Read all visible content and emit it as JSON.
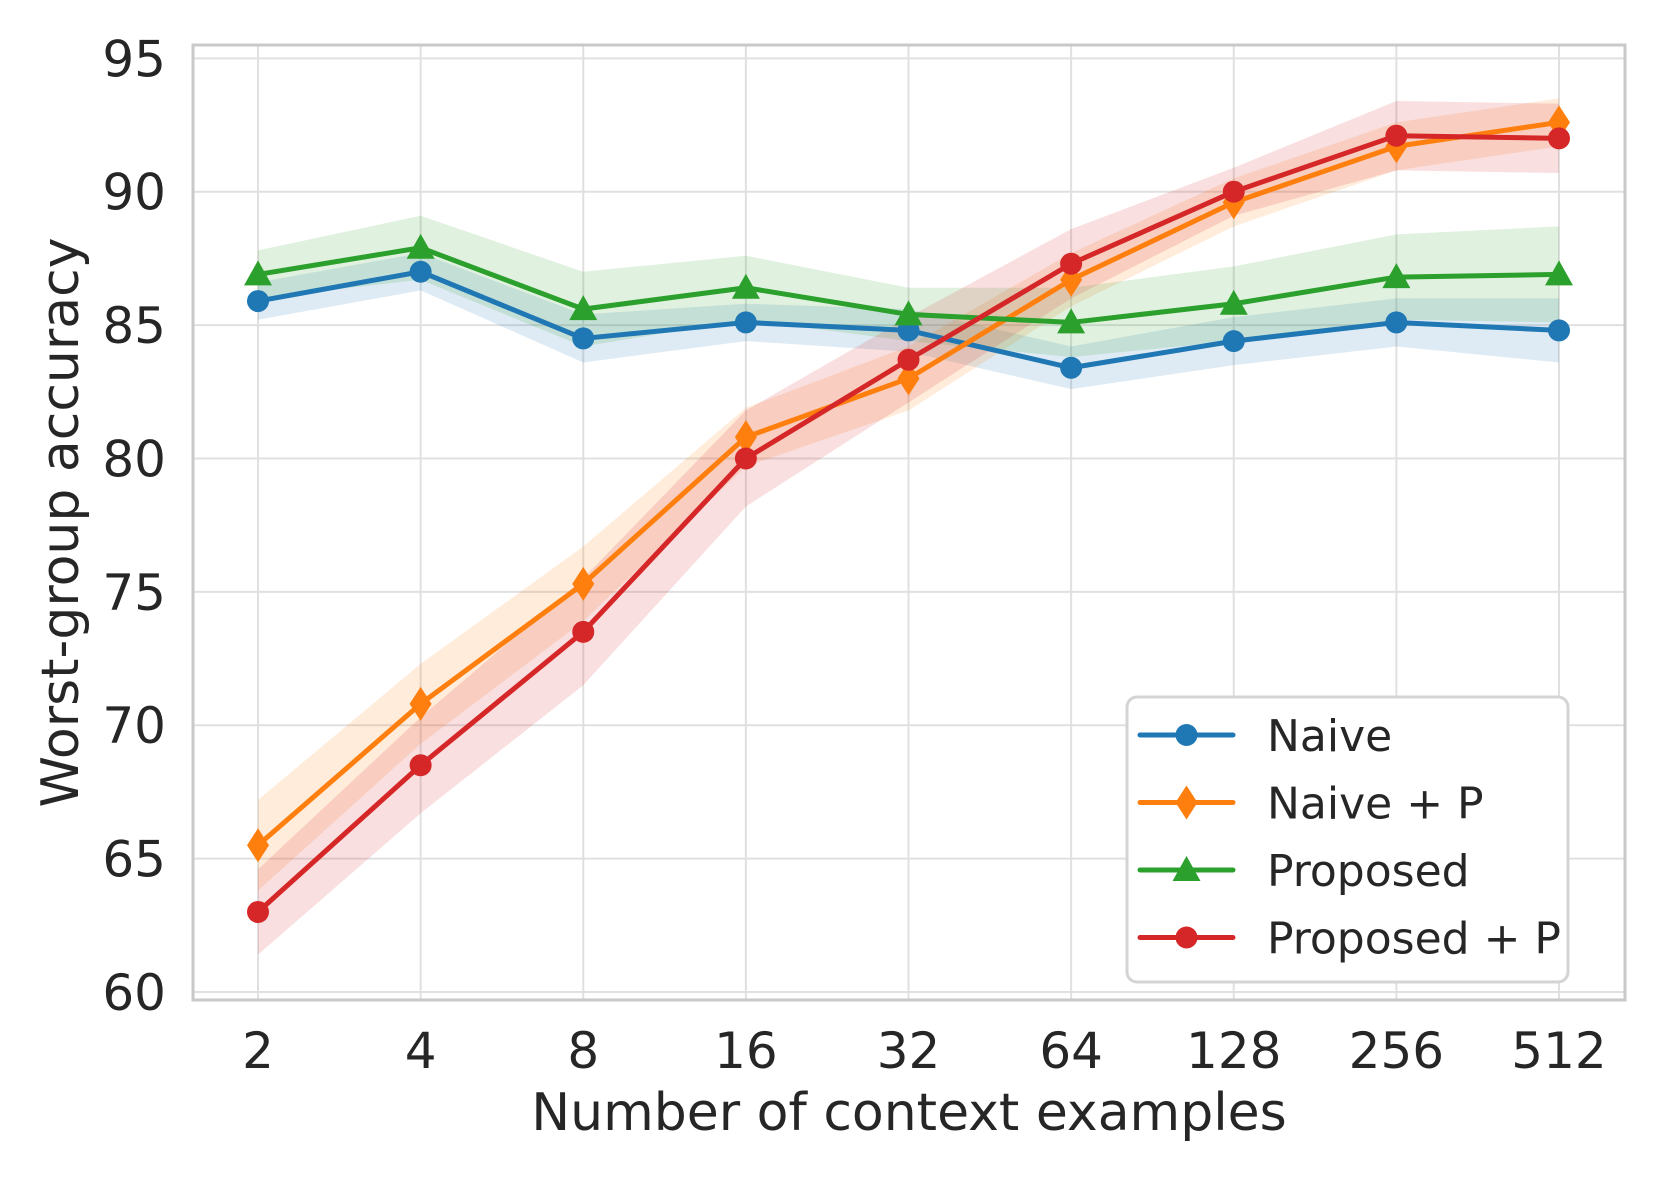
{
  "chart_data": {
    "type": "line",
    "title": "",
    "xlabel": "Number of context examples",
    "ylabel": "Worst-group accuracy",
    "x_tick_labels": [
      "2",
      "4",
      "8",
      "16",
      "32",
      "64",
      "128",
      "256",
      "512"
    ],
    "y_tick_labels": [
      "60",
      "65",
      "70",
      "75",
      "80",
      "85",
      "90",
      "95"
    ],
    "y_ticks": [
      60,
      65,
      70,
      75,
      80,
      85,
      90,
      95
    ],
    "ylim": [
      59.7,
      95.5
    ],
    "grid": true,
    "legend_position": "lower right",
    "x_scale": "log2-equal-spacing",
    "series": [
      {
        "name": "Naive",
        "color": "#1f77b4",
        "marker": "circle",
        "values": [
          85.9,
          87.0,
          84.5,
          85.1,
          84.8,
          83.4,
          84.4,
          85.1,
          84.8
        ],
        "band_halfwidth": [
          0.7,
          0.7,
          0.9,
          0.7,
          0.8,
          0.8,
          0.9,
          0.9,
          1.2
        ]
      },
      {
        "name": "Naive + P",
        "color": "#ff7f0e",
        "marker": "diamond",
        "values": [
          65.5,
          70.8,
          75.3,
          80.8,
          83.0,
          86.7,
          89.6,
          91.7,
          92.6
        ],
        "band_halfwidth": [
          1.7,
          1.5,
          1.4,
          1.1,
          1.2,
          1.0,
          0.9,
          0.9,
          0.9
        ]
      },
      {
        "name": "Proposed",
        "color": "#2ca02c",
        "marker": "triangle",
        "values": [
          86.9,
          87.9,
          85.6,
          86.4,
          85.4,
          85.1,
          85.8,
          86.8,
          86.9
        ],
        "band_halfwidth": [
          0.9,
          1.2,
          1.4,
          1.2,
          1.0,
          1.3,
          1.4,
          1.6,
          1.8
        ]
      },
      {
        "name": "Proposed + P",
        "color": "#d62728",
        "marker": "circle",
        "values": [
          63.0,
          68.5,
          73.5,
          80.0,
          83.7,
          87.3,
          90.0,
          92.1,
          92.0
        ],
        "band_halfwidth": [
          1.6,
          1.8,
          2.0,
          1.8,
          1.6,
          1.3,
          0.9,
          1.3,
          1.3
        ]
      }
    ]
  },
  "style": {
    "background": "#ffffff",
    "grid_color": "#e0e0e0",
    "spine_color": "#c9c9c9",
    "text_color": "#262626",
    "legend_border": "#d4d4d4",
    "band_opacity": 0.15
  }
}
